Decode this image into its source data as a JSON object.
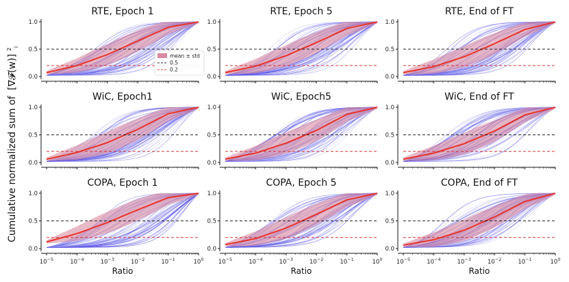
{
  "figure": {
    "ylabel_text": "Cumulative normalized sum of",
    "ylabel_math": "[∇𝓕(w)]",
    "ylabel_sup": "2",
    "ylabel_sub": "i",
    "xlabel": "Ratio"
  },
  "colors": {
    "mean_line": "#e8332a",
    "std_band": "#d98aa0",
    "curves": "#3d33e0",
    "curves_light": "#9c9cf2",
    "ref_05": "#222222",
    "ref_02": "#d33333"
  },
  "legend": {
    "entries": [
      {
        "label": "mean ± std",
        "kind": "patch"
      },
      {
        "label": "0.5",
        "kind": "dashed-black"
      },
      {
        "label": "0.2",
        "kind": "dashed-red"
      }
    ],
    "location": "lower-right of first panel"
  },
  "chart_data": {
    "type": "line",
    "xscale": "log",
    "xlim_exp": [
      -5,
      0
    ],
    "ylim": [
      0,
      1
    ],
    "xtick_exps": [
      "-5",
      "-4",
      "-3",
      "-2",
      "-1",
      "0"
    ],
    "ytick_labels": [
      "0.0",
      "0.5",
      "1.0"
    ],
    "yticks": [
      0,
      0.5,
      1
    ],
    "ref_lines": [
      0.5,
      0.2
    ],
    "mean_curve_x_exp": [
      -5,
      -4,
      -3,
      -2,
      -1,
      0
    ],
    "panels": [
      {
        "title": "RTE, Epoch 1",
        "mean": [
          0.07,
          0.2,
          0.4,
          0.65,
          0.9,
          1.0
        ]
      },
      {
        "title": "RTE, Epoch 5",
        "mean": [
          0.07,
          0.19,
          0.38,
          0.62,
          0.88,
          1.0
        ]
      },
      {
        "title": "RTE, End of FT",
        "mean": [
          0.07,
          0.18,
          0.36,
          0.6,
          0.86,
          1.0
        ]
      },
      {
        "title": "WiC, Epoch1",
        "mean": [
          0.06,
          0.18,
          0.36,
          0.6,
          0.88,
          1.0
        ]
      },
      {
        "title": "WiC, Epoch5",
        "mean": [
          0.06,
          0.17,
          0.35,
          0.58,
          0.87,
          1.0
        ]
      },
      {
        "title": "WiC, End of FT",
        "mean": [
          0.06,
          0.17,
          0.34,
          0.57,
          0.86,
          1.0
        ]
      },
      {
        "title": "COPA, Epoch 1",
        "mean": [
          0.12,
          0.27,
          0.47,
          0.7,
          0.92,
          1.0
        ]
      },
      {
        "title": "COPA, Epoch 5",
        "mean": [
          0.07,
          0.18,
          0.37,
          0.62,
          0.88,
          1.0
        ]
      },
      {
        "title": "COPA, End of FT",
        "mean": [
          0.06,
          0.16,
          0.33,
          0.57,
          0.85,
          1.0
        ]
      }
    ]
  }
}
